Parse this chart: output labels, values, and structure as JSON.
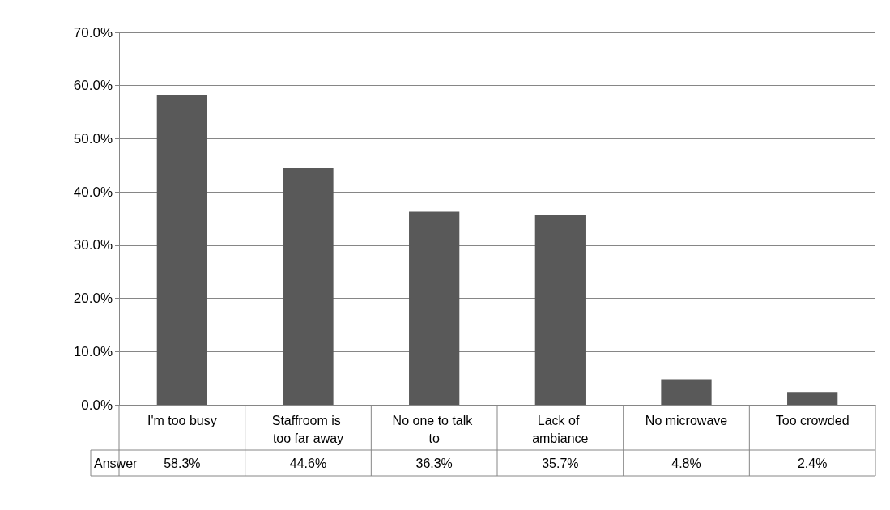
{
  "chart_data": {
    "type": "bar",
    "categories": [
      "I'm too busy",
      "Staffroom is too far away",
      "No one to talk to",
      "Lack of ambiance",
      "No microwave",
      "Too crowded"
    ],
    "series": [
      {
        "name": "Answer",
        "color": "#595959",
        "values": [
          58.3,
          44.6,
          36.3,
          35.7,
          4.8,
          2.4
        ],
        "value_labels": [
          "58.3%",
          "44.6%",
          "36.3%",
          "35.7%",
          "4.8%",
          "2.4%"
        ]
      }
    ],
    "ylim": [
      0,
      70
    ],
    "yticks": [
      {
        "value": 0,
        "label": "0.0%"
      },
      {
        "value": 10,
        "label": "10.0%"
      },
      {
        "value": 20,
        "label": "20.0%"
      },
      {
        "value": 30,
        "label": "30.0%"
      },
      {
        "value": 40,
        "label": "40.0%"
      },
      {
        "value": 50,
        "label": "50.0%"
      },
      {
        "value": 60,
        "label": "60.0%"
      },
      {
        "value": 70,
        "label": "70.0%"
      }
    ],
    "grid": "y"
  }
}
